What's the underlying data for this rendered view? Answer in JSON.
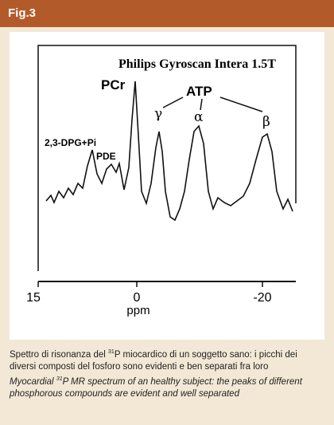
{
  "header": {
    "label": "Fig.3"
  },
  "figure": {
    "instrument": "Philips Gyroscan Intera 1.5T",
    "peaks": {
      "pcr": "PCr",
      "atp": "ATP",
      "gamma": "γ",
      "alpha": "α",
      "beta": "β",
      "dpg": "2,3-DPG+Pi",
      "pde": "PDE"
    },
    "x_ticks": [
      15,
      0,
      -20
    ],
    "x_label": "ppm"
  },
  "caption": {
    "italian_1": "Spettro di risonanza del ",
    "italian_sup": "31",
    "italian_2": "P miocardico di un soggetto sano: i picchi dei diversi composti del fosforo sono evidenti e ben separati fra loro",
    "english_1": "Myocardial ",
    "english_sup": "31",
    "english_2": "P MR spectrum of an healthy subject: the peaks of different phosphorous compounds are evident and well separated"
  }
}
